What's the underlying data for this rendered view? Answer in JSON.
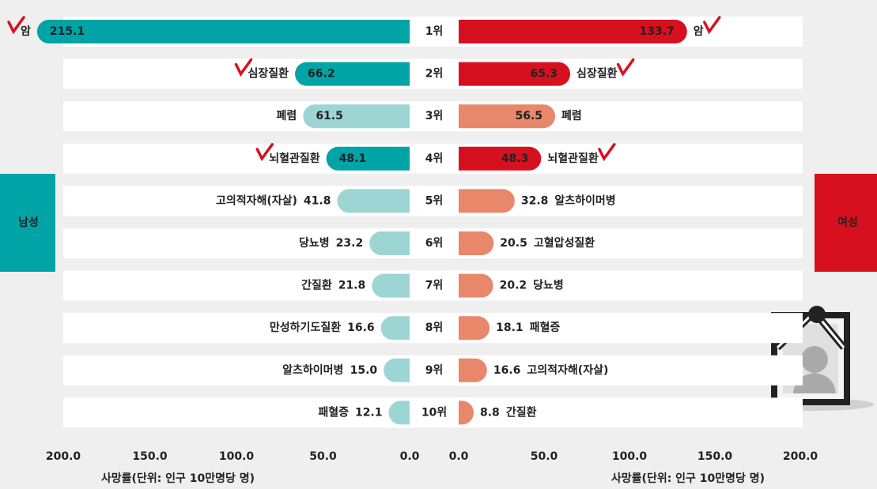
{
  "chart_data": {
    "type": "butterfly-bar",
    "categories": [
      "1위",
      "2위",
      "3위",
      "4위",
      "5위",
      "6위",
      "7위",
      "8위",
      "9위",
      "10위"
    ],
    "rank_colors": [
      "#d7101f",
      "#d7101f",
      "#222222",
      "#222222",
      "#222222",
      "#222222",
      "#222222",
      "#222222",
      "#222222",
      "#222222"
    ],
    "series": [
      {
        "name": "남성",
        "color": "#00a3a6",
        "labels": [
          "암",
          "심장질환",
          "폐렴",
          "뇌혈관질환",
          "고의적자해(자살)",
          "당뇨병",
          "간질환",
          "만성하기도질환",
          "알츠하이머병",
          "패혈증"
        ],
        "values": [
          215.1,
          66.2,
          61.5,
          48.1,
          41.8,
          23.2,
          21.8,
          16.6,
          15.0,
          12.1
        ],
        "value_labels": [
          "215.1",
          "66.2",
          "61.5",
          "48.1",
          "41.8",
          "23.2",
          "21.8",
          "16.6",
          "15.0",
          "12.1"
        ],
        "colors": [
          "#00a3a6",
          "#00a3a6",
          "#9dd5d4",
          "#00a3a6",
          "#9dd5d4",
          "#9dd5d4",
          "#9dd5d4",
          "#9dd5d4",
          "#9dd5d4",
          "#9dd5d4"
        ],
        "highlight": [
          true,
          true,
          false,
          true,
          false,
          false,
          false,
          false,
          false,
          false
        ]
      },
      {
        "name": "여성",
        "color": "#d7101f",
        "labels": [
          "암",
          "심장질환",
          "폐렴",
          "뇌혈관질환",
          "알츠하이머병",
          "고혈압성질환",
          "당뇨병",
          "패혈증",
          "고의적자해(자살)",
          "간질환"
        ],
        "values": [
          133.7,
          65.3,
          56.5,
          48.3,
          32.8,
          20.5,
          20.2,
          18.1,
          16.6,
          8.8
        ],
        "value_labels": [
          "133.7",
          "65.3",
          "56.5",
          "48.3",
          "32.8",
          "20.5",
          "20.2",
          "18.1",
          "16.6",
          "8.8"
        ],
        "colors": [
          "#d7101f",
          "#d7101f",
          "#e9876a",
          "#d7101f",
          "#e9876a",
          "#e9876a",
          "#e9876a",
          "#e9876a",
          "#e9876a",
          "#e9876a"
        ],
        "highlight": [
          true,
          true,
          false,
          true,
          false,
          false,
          false,
          false,
          false,
          false
        ]
      }
    ],
    "xlim": [
      0,
      200
    ],
    "xticks": [
      {
        "value": 0,
        "label": "0.0"
      },
      {
        "value": 50,
        "label": "50.0"
      },
      {
        "value": 100,
        "label": "100.0"
      },
      {
        "value": 150,
        "label": "150.0"
      },
      {
        "value": 200,
        "label": "200.0"
      }
    ],
    "xlabel": "사망률(단위: 인구 10만명당 명)"
  }
}
